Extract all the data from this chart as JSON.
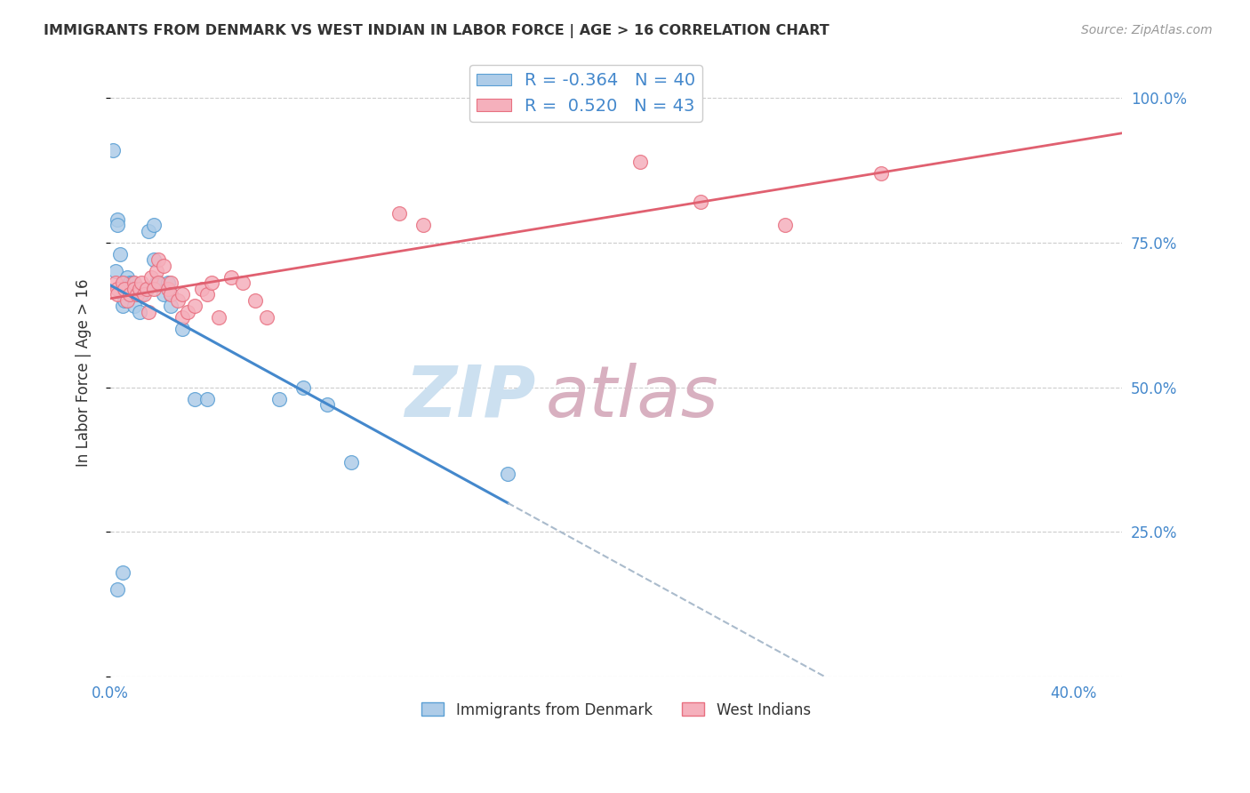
{
  "title": "IMMIGRANTS FROM DENMARK VS WEST INDIAN IN LABOR FORCE | AGE > 16 CORRELATION CHART",
  "source": "Source: ZipAtlas.com",
  "ylabel": "In Labor Force | Age > 16",
  "legend_denmark_r": "-0.364",
  "legend_denmark_n": "40",
  "legend_wi_r": "0.520",
  "legend_wi_n": "43",
  "denmark_color": "#aecce8",
  "wi_color": "#f5b0bc",
  "denmark_edge_color": "#5a9fd4",
  "wi_edge_color": "#e87080",
  "denmark_line_color": "#4488cc",
  "wi_line_color": "#e06070",
  "dashed_color": "#aabbcc",
  "xlim": [
    0.0,
    0.42
  ],
  "ylim": [
    0.0,
    1.05
  ],
  "x_ticks": [
    0.0,
    0.05,
    0.1,
    0.15,
    0.2,
    0.25,
    0.3,
    0.35,
    0.4
  ],
  "y_ticks": [
    0.0,
    0.25,
    0.5,
    0.75,
    1.0
  ],
  "background_color": "#ffffff",
  "grid_color": "#cccccc",
  "text_color": "#4488cc",
  "title_color": "#333333",
  "source_color": "#999999",
  "watermark_zip_color": "#cce0f0",
  "watermark_atlas_color": "#d8b0c0",
  "denmark_scatter_x": [
    0.001,
    0.002,
    0.003,
    0.003,
    0.004,
    0.005,
    0.005,
    0.005,
    0.006,
    0.006,
    0.006,
    0.007,
    0.007,
    0.008,
    0.008,
    0.009,
    0.01,
    0.01,
    0.012,
    0.013,
    0.015,
    0.016,
    0.018,
    0.018,
    0.019,
    0.02,
    0.022,
    0.024,
    0.025,
    0.025,
    0.03,
    0.035,
    0.04,
    0.07,
    0.08,
    0.09,
    0.1,
    0.165,
    0.005,
    0.003
  ],
  "denmark_scatter_y": [
    0.91,
    0.7,
    0.79,
    0.78,
    0.73,
    0.68,
    0.67,
    0.64,
    0.68,
    0.67,
    0.65,
    0.69,
    0.67,
    0.68,
    0.66,
    0.68,
    0.67,
    0.64,
    0.63,
    0.66,
    0.67,
    0.77,
    0.78,
    0.72,
    0.68,
    0.68,
    0.66,
    0.68,
    0.66,
    0.64,
    0.6,
    0.48,
    0.48,
    0.48,
    0.5,
    0.47,
    0.37,
    0.35,
    0.18,
    0.15
  ],
  "wi_scatter_x": [
    0.002,
    0.003,
    0.003,
    0.005,
    0.006,
    0.007,
    0.008,
    0.01,
    0.01,
    0.011,
    0.012,
    0.013,
    0.014,
    0.015,
    0.016,
    0.017,
    0.018,
    0.019,
    0.02,
    0.02,
    0.022,
    0.024,
    0.025,
    0.025,
    0.028,
    0.03,
    0.03,
    0.032,
    0.035,
    0.038,
    0.04,
    0.042,
    0.045,
    0.05,
    0.055,
    0.06,
    0.065,
    0.12,
    0.13,
    0.22,
    0.245,
    0.28,
    0.32
  ],
  "wi_scatter_y": [
    0.68,
    0.67,
    0.66,
    0.68,
    0.67,
    0.65,
    0.66,
    0.68,
    0.67,
    0.66,
    0.67,
    0.68,
    0.66,
    0.67,
    0.63,
    0.69,
    0.67,
    0.7,
    0.72,
    0.68,
    0.71,
    0.67,
    0.68,
    0.66,
    0.65,
    0.66,
    0.62,
    0.63,
    0.64,
    0.67,
    0.66,
    0.68,
    0.62,
    0.69,
    0.68,
    0.65,
    0.62,
    0.8,
    0.78,
    0.89,
    0.82,
    0.78,
    0.87
  ]
}
